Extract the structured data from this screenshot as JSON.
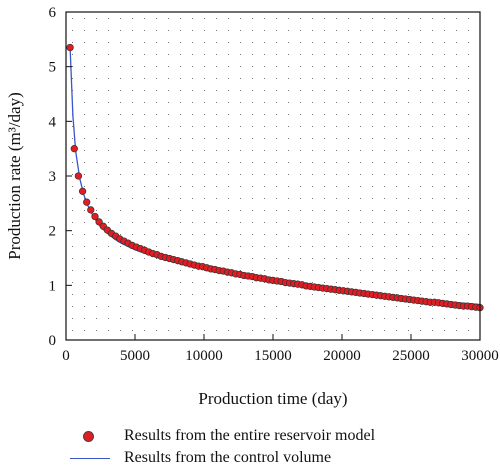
{
  "chart_data": {
    "type": "scatter",
    "title": "",
    "xlabel": "Production time (day)",
    "ylabel": "Production rate (m³/day)",
    "xlim": [
      0,
      30000
    ],
    "ylim": [
      0,
      6
    ],
    "xticks": [
      0,
      5000,
      10000,
      15000,
      20000,
      25000,
      30000
    ],
    "yticks": [
      0,
      1,
      2,
      3,
      4,
      5,
      6
    ],
    "grid": "dotted",
    "legend_position": "bottom",
    "series": [
      {
        "name": "Results from the entire reservoir model",
        "kind": "markers",
        "color": "#e31c23",
        "x": [
          300,
          600,
          900,
          1200,
          1500,
          1800,
          2100,
          2400,
          2700,
          3000,
          3300,
          3600,
          3900,
          4200,
          4500,
          4800,
          5100,
          5400,
          5700,
          6000,
          6300,
          6600,
          6900,
          7200,
          7500,
          7800,
          8100,
          8400,
          8700,
          9000,
          9300,
          9600,
          9900,
          10200,
          10500,
          10800,
          11100,
          11400,
          11700,
          12000,
          12300,
          12600,
          12900,
          13200,
          13500,
          13800,
          14100,
          14400,
          14700,
          15000,
          15300,
          15600,
          15900,
          16200,
          16500,
          16800,
          17100,
          17400,
          17700,
          18000,
          18300,
          18600,
          18900,
          19200,
          19500,
          19800,
          20100,
          20400,
          20700,
          21000,
          21300,
          21600,
          21900,
          22200,
          22500,
          22800,
          23100,
          23400,
          23700,
          24000,
          24300,
          24600,
          24900,
          25200,
          25500,
          25800,
          26100,
          26400,
          26700,
          27000,
          27300,
          27600,
          27900,
          28200,
          28500,
          28800,
          29100,
          29400,
          29700,
          30000
        ],
        "y": [
          5.35,
          3.5,
          3.0,
          2.72,
          2.52,
          2.38,
          2.26,
          2.16,
          2.08,
          2.01,
          1.95,
          1.9,
          1.85,
          1.81,
          1.77,
          1.73,
          1.7,
          1.67,
          1.64,
          1.61,
          1.58,
          1.56,
          1.53,
          1.51,
          1.49,
          1.47,
          1.45,
          1.43,
          1.41,
          1.39,
          1.37,
          1.35,
          1.34,
          1.32,
          1.3,
          1.29,
          1.27,
          1.26,
          1.24,
          1.23,
          1.21,
          1.2,
          1.18,
          1.17,
          1.16,
          1.14,
          1.13,
          1.12,
          1.1,
          1.09,
          1.08,
          1.07,
          1.05,
          1.04,
          1.03,
          1.02,
          1.01,
          0.99,
          0.98,
          0.97,
          0.96,
          0.95,
          0.94,
          0.93,
          0.92,
          0.91,
          0.9,
          0.89,
          0.88,
          0.87,
          0.86,
          0.85,
          0.84,
          0.83,
          0.82,
          0.81,
          0.8,
          0.79,
          0.78,
          0.77,
          0.76,
          0.75,
          0.74,
          0.73,
          0.72,
          0.71,
          0.7,
          0.69,
          0.69,
          0.68,
          0.67,
          0.66,
          0.65,
          0.64,
          0.63,
          0.62,
          0.62,
          0.61,
          0.6,
          0.59
        ]
      },
      {
        "name": "Results from the control volume",
        "kind": "line",
        "color": "#3a55c9",
        "x": [
          300,
          500,
          700,
          1000,
          1300,
          1600,
          2000,
          2500,
          3000,
          3500,
          4000,
          5000,
          6000,
          7000,
          8000,
          9000,
          10000,
          12000,
          14000,
          16000,
          18000,
          20000,
          22000,
          24000,
          26000,
          28000,
          30000
        ],
        "y": [
          5.35,
          4.1,
          3.45,
          2.95,
          2.65,
          2.45,
          2.25,
          2.07,
          1.95,
          1.85,
          1.77,
          1.65,
          1.56,
          1.48,
          1.42,
          1.37,
          1.33,
          1.24,
          1.16,
          1.08,
          1.0,
          0.93,
          0.86,
          0.8,
          0.74,
          0.69,
          0.65
        ]
      }
    ]
  }
}
